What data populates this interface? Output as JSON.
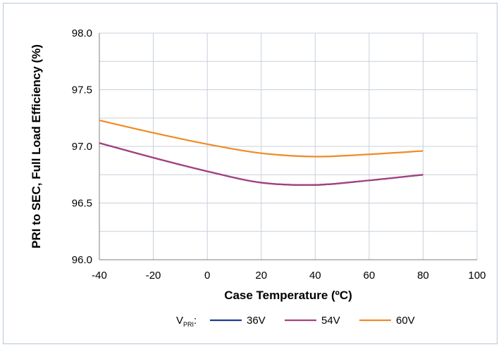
{
  "chart_data": {
    "type": "line",
    "xlabel": "Case Temperature (ºC)",
    "ylabel": "PRI to SEC, Full Load Efficiency (%)",
    "xlim": [
      -40,
      100
    ],
    "ylim": [
      96.0,
      98.0
    ],
    "x_ticks": [
      -40,
      -20,
      0,
      20,
      40,
      60,
      80,
      100
    ],
    "x_tick_labels": [
      "-40",
      "-20",
      "0",
      "20",
      "40",
      "60",
      "80",
      "100"
    ],
    "y_ticks": [
      96.0,
      96.25,
      96.5,
      96.75,
      97.0,
      97.25,
      97.5,
      97.75,
      98.0
    ],
    "y_tick_labels": [
      "96.0",
      "",
      "96.5",
      "",
      "97.0",
      "",
      "97.5",
      "",
      "98.0"
    ],
    "grid": true,
    "legend": {
      "placement": "bottom",
      "prefix_main": "V",
      "prefix_sub": "PRI",
      "prefix_suffix": ":"
    },
    "series": [
      {
        "name": "36V",
        "color": "#1f3a93",
        "x": [
          -40,
          -20,
          0,
          20,
          40,
          60,
          80
        ],
        "y": [
          97.03,
          96.9,
          96.78,
          96.68,
          96.66,
          96.7,
          96.75
        ]
      },
      {
        "name": "54V",
        "color": "#a8407f",
        "x": [
          -40,
          -20,
          0,
          20,
          40,
          60,
          80
        ],
        "y": [
          97.03,
          96.9,
          96.78,
          96.68,
          96.66,
          96.7,
          96.75
        ]
      },
      {
        "name": "60V",
        "color": "#f08a24",
        "x": [
          -40,
          -20,
          0,
          20,
          40,
          60,
          80
        ],
        "y": [
          97.23,
          97.12,
          97.02,
          96.94,
          96.91,
          96.93,
          96.96
        ]
      }
    ]
  }
}
